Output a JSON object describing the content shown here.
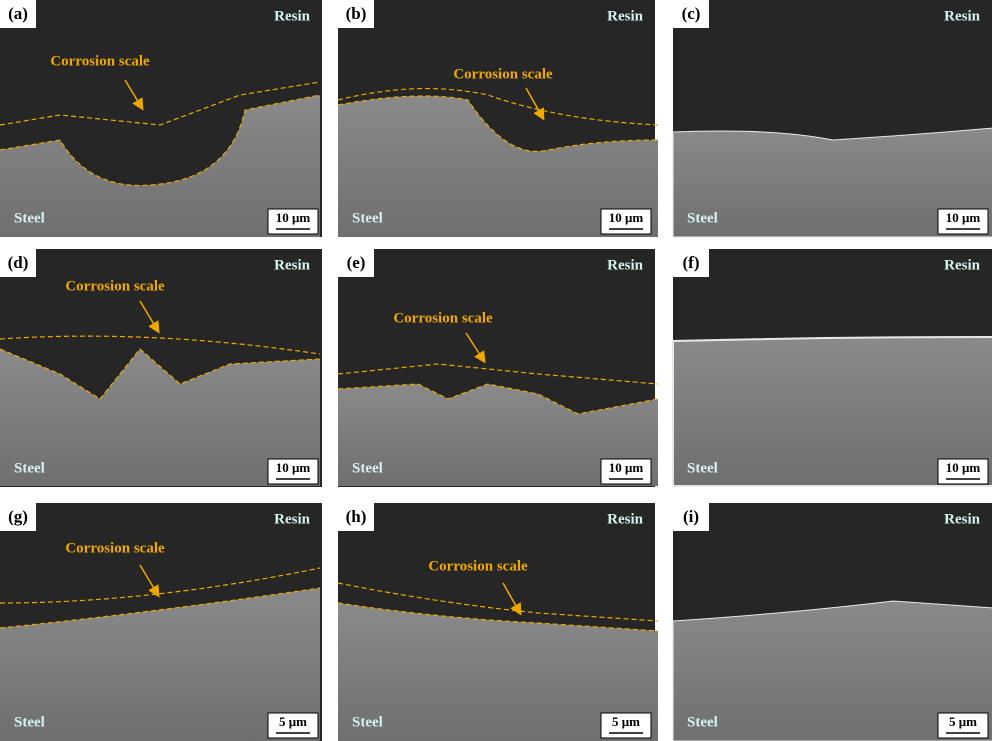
{
  "panels": [
    {
      "label": "(a)",
      "resin": "Resin",
      "steel": "Steel",
      "scale_bar": "10 μm",
      "annotation": "Corrosion scale"
    },
    {
      "label": "(b)",
      "resin": "Resin",
      "steel": "Steel",
      "scale_bar": "10 μm",
      "annotation": "Corrosion scale"
    },
    {
      "label": "(c)",
      "resin": "Resin",
      "steel": "Steel",
      "scale_bar": "10 μm"
    },
    {
      "label": "(d)",
      "resin": "Resin",
      "steel": "Steel",
      "scale_bar": "10 μm",
      "annotation": "Corrosion scale"
    },
    {
      "label": "(e)",
      "resin": "Resin",
      "steel": "Steel",
      "scale_bar": "10 μm",
      "annotation": "Corrosion scale"
    },
    {
      "label": "(f)",
      "resin": "Resin",
      "steel": "Steel",
      "scale_bar": "10 μm"
    },
    {
      "label": "(g)",
      "resin": "Resin",
      "steel": "Steel",
      "scale_bar": "5 μm",
      "annotation": "Corrosion scale"
    },
    {
      "label": "(h)",
      "resin": "Resin",
      "steel": "Steel",
      "scale_bar": "5 μm",
      "annotation": "Corrosion scale"
    },
    {
      "label": "(i)",
      "resin": "Resin",
      "steel": "Steel",
      "scale_bar": "5 μm"
    }
  ]
}
